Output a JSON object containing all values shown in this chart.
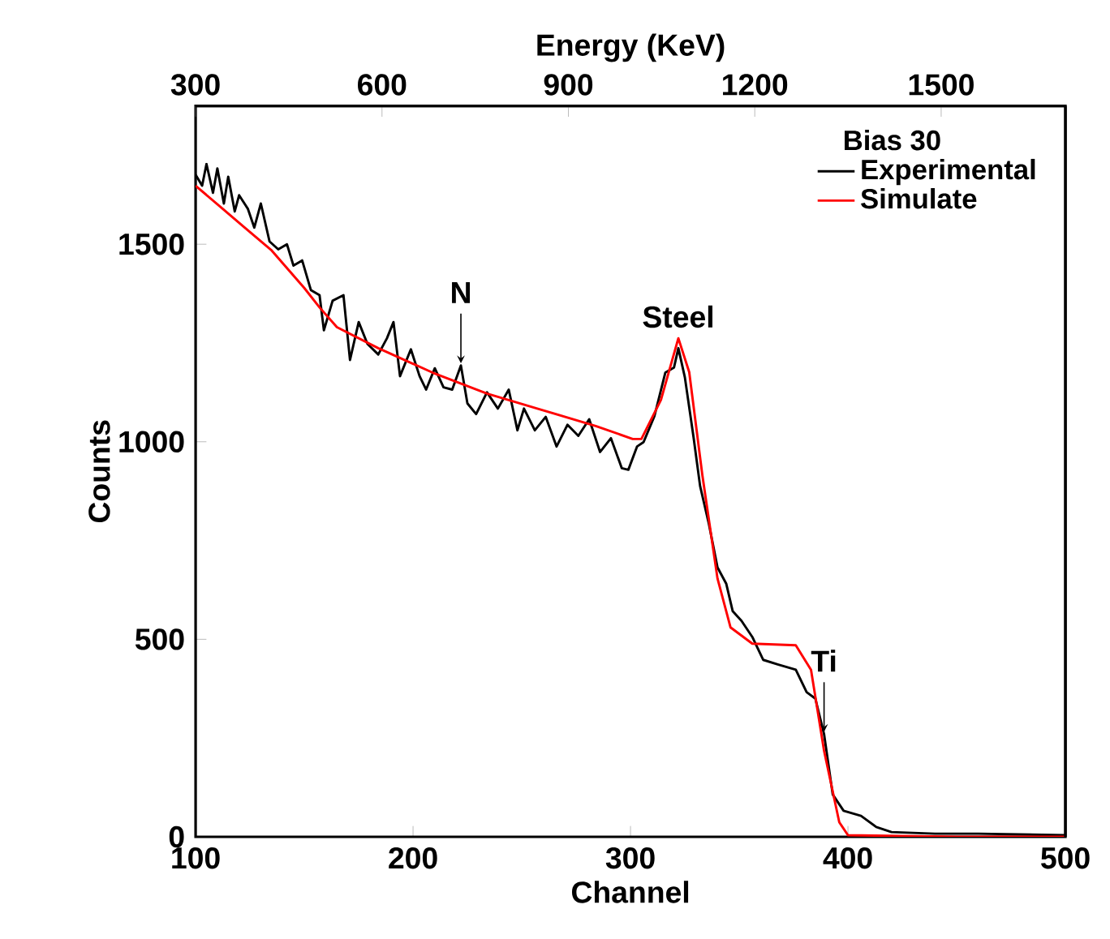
{
  "chart_data": {
    "type": "line",
    "xlabel": "Channel",
    "ylabel": "Counts",
    "x2label": "Energy (KeV)",
    "legend_title": "Bias 30",
    "xlim": [
      100,
      500
    ],
    "xticks": [
      100,
      200,
      300,
      400,
      500
    ],
    "ylim": [
      0,
      1850
    ],
    "yticks": [
      0,
      500,
      1000,
      1500
    ],
    "x2lim": [
      300,
      1700
    ],
    "x2ticks": [
      300,
      600,
      900,
      1200,
      1500
    ],
    "legend": "top right",
    "series": [
      {
        "name": "Experimental",
        "color": "#000000",
        "x": [
          100,
          103,
          105,
          108,
          110,
          113,
          115,
          118,
          120,
          124,
          127,
          130,
          134,
          138,
          142,
          145,
          149,
          153,
          157,
          159,
          163,
          168,
          171,
          175,
          179,
          184,
          188,
          191,
          194,
          199,
          203,
          206,
          210,
          214,
          218,
          222,
          225,
          229,
          234,
          239,
          244,
          248,
          251,
          256,
          261,
          266,
          271,
          276,
          281,
          286,
          291,
          296,
          299,
          303,
          306,
          311,
          316,
          320,
          322,
          325,
          329,
          332,
          336,
          340,
          344,
          347,
          351,
          356,
          361,
          368,
          376,
          381,
          385,
          389,
          393,
          398,
          406,
          413,
          420,
          440,
          460,
          480,
          500
        ],
        "values": [
          1676,
          1648,
          1703,
          1630,
          1692,
          1603,
          1671,
          1583,
          1624,
          1590,
          1542,
          1603,
          1507,
          1487,
          1500,
          1446,
          1459,
          1384,
          1371,
          1282,
          1357,
          1371,
          1207,
          1303,
          1248,
          1221,
          1262,
          1303,
          1166,
          1234,
          1166,
          1132,
          1186,
          1138,
          1132,
          1193,
          1097,
          1070,
          1125,
          1084,
          1132,
          1029,
          1084,
          1029,
          1063,
          988,
          1043,
          1015,
          1057,
          974,
          1009,
          933,
          929,
          988,
          999,
          1065,
          1175,
          1188,
          1237,
          1163,
          1011,
          888,
          793,
          682,
          641,
          571,
          547,
          506,
          448,
          436,
          423,
          366,
          350,
          260,
          107,
          66,
          53,
          25,
          12,
          8,
          8,
          6,
          4
        ]
      },
      {
        "name": "Simulate",
        "color": "#ff0000",
        "x": [
          100,
          122,
          135,
          150,
          157,
          165,
          184,
          209,
          234,
          259,
          284,
          301,
          305,
          314,
          322,
          327,
          333,
          340,
          346,
          356,
          376,
          383,
          389,
          396,
          400,
          450,
          500
        ],
        "values": [
          1648,
          1545,
          1484,
          1389,
          1340,
          1290,
          1237,
          1175,
          1122,
          1081,
          1040,
          1007,
          1007,
          1106,
          1262,
          1176,
          917,
          654,
          530,
          489,
          485,
          423,
          218,
          37,
          4,
          0,
          0
        ]
      }
    ],
    "annotations": [
      {
        "text": "N",
        "x": 222,
        "y": 1193
      },
      {
        "text": "Steel",
        "x": 322,
        "y": 1262
      },
      {
        "text": "Ti",
        "x": 389,
        "y": 260
      }
    ]
  }
}
